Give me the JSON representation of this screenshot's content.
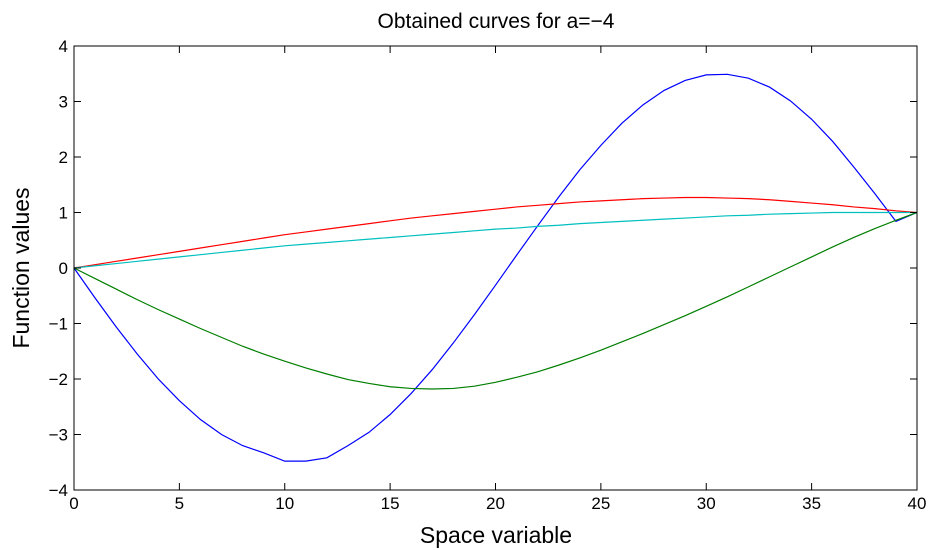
{
  "chart_data": {
    "type": "line",
    "title": "Obtained curves for a=−4",
    "xlabel": "Space variable",
    "ylabel": "Function values",
    "xlim": [
      0,
      40
    ],
    "ylim": [
      -4,
      4
    ],
    "xticks": [
      0,
      5,
      10,
      15,
      20,
      25,
      30,
      35,
      40
    ],
    "yticks": [
      -4,
      -3,
      -2,
      -1,
      0,
      1,
      2,
      3,
      4
    ],
    "xtick_labels": [
      "0",
      "5",
      "10",
      "15",
      "20",
      "25",
      "30",
      "35",
      "40"
    ],
    "ytick_labels": [
      "−4",
      "−3",
      "−2",
      "−1",
      "0",
      "1",
      "2",
      "3",
      "4"
    ],
    "grid": false,
    "x": [
      0,
      1,
      2,
      3,
      4,
      5,
      6,
      7,
      8,
      9,
      10,
      11,
      12,
      13,
      14,
      15,
      16,
      17,
      18,
      19,
      20,
      21,
      22,
      23,
      24,
      25,
      26,
      27,
      28,
      29,
      30,
      31,
      32,
      33,
      34,
      35,
      36,
      37,
      38,
      39,
      40
    ],
    "series": [
      {
        "color": "#0000ff",
        "values": [
          0.0,
          -0.54,
          -1.06,
          -1.55,
          -2.0,
          -2.39,
          -2.73,
          -3.0,
          -3.2,
          -3.33,
          -3.48,
          -3.48,
          -3.42,
          -3.2,
          -2.96,
          -2.64,
          -2.26,
          -1.83,
          -1.35,
          -0.84,
          -0.31,
          0.23,
          0.76,
          1.28,
          1.77,
          2.21,
          2.61,
          2.94,
          3.2,
          3.38,
          3.48,
          3.49,
          3.42,
          3.26,
          3.01,
          2.68,
          2.28,
          1.82,
          1.34,
          0.84,
          1.0
        ]
      },
      {
        "color": "#007f00",
        "values": [
          0.0,
          -0.19,
          -0.38,
          -0.57,
          -0.75,
          -0.92,
          -1.09,
          -1.25,
          -1.41,
          -1.55,
          -1.68,
          -1.8,
          -1.91,
          -2.01,
          -2.08,
          -2.14,
          -2.17,
          -2.18,
          -2.17,
          -2.13,
          -2.06,
          -1.97,
          -1.87,
          -1.75,
          -1.62,
          -1.48,
          -1.33,
          -1.18,
          -1.02,
          -0.86,
          -0.69,
          -0.52,
          -0.34,
          -0.16,
          0.02,
          0.2,
          0.38,
          0.55,
          0.71,
          0.86,
          1.0
        ]
      },
      {
        "color": "#ff0000",
        "values": [
          0.0,
          0.06,
          0.12,
          0.18,
          0.24,
          0.3,
          0.36,
          0.42,
          0.48,
          0.54,
          0.6,
          0.65,
          0.7,
          0.75,
          0.8,
          0.85,
          0.9,
          0.94,
          0.98,
          1.02,
          1.06,
          1.1,
          1.13,
          1.16,
          1.19,
          1.21,
          1.23,
          1.25,
          1.26,
          1.27,
          1.27,
          1.26,
          1.25,
          1.23,
          1.2,
          1.17,
          1.14,
          1.1,
          1.07,
          1.03,
          1.0
        ]
      },
      {
        "color": "#00bfbf",
        "values": [
          0.0,
          0.04,
          0.08,
          0.12,
          0.16,
          0.2,
          0.24,
          0.28,
          0.32,
          0.36,
          0.4,
          0.43,
          0.46,
          0.49,
          0.52,
          0.55,
          0.58,
          0.61,
          0.64,
          0.67,
          0.7,
          0.72,
          0.75,
          0.77,
          0.8,
          0.82,
          0.84,
          0.86,
          0.88,
          0.9,
          0.92,
          0.94,
          0.95,
          0.97,
          0.98,
          0.99,
          1.0,
          1.0,
          1.0,
          1.0,
          1.0
        ]
      }
    ]
  }
}
